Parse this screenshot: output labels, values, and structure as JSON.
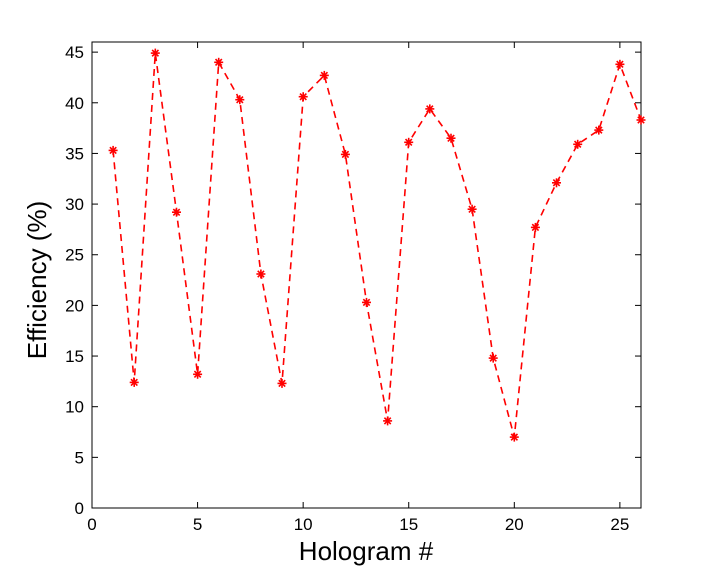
{
  "chart_data": {
    "type": "line",
    "title": "",
    "xlabel": "Hologram #",
    "ylabel": "Efficiency (%)",
    "xlim": [
      0,
      26
    ],
    "ylim": [
      0,
      46
    ],
    "xticks": [
      0,
      5,
      10,
      15,
      20,
      25
    ],
    "yticks": [
      0,
      5,
      10,
      15,
      20,
      25,
      30,
      35,
      40,
      45
    ],
    "grid": false,
    "legend": "none",
    "series": [
      {
        "line_style": "dashed",
        "marker": "asterisk",
        "color": "#ff0000",
        "x": [
          1,
          2,
          3,
          4,
          5,
          6,
          7,
          8,
          9,
          10,
          11,
          12,
          13,
          14,
          15,
          16,
          17,
          18,
          19,
          20,
          21,
          22,
          23,
          24,
          25,
          26
        ],
        "y": [
          35.3,
          12.4,
          44.9,
          29.2,
          13.2,
          44.0,
          40.3,
          23.1,
          12.3,
          40.6,
          42.7,
          34.9,
          20.3,
          8.6,
          36.1,
          39.4,
          36.5,
          29.5,
          14.8,
          7.0,
          27.7,
          32.1,
          35.9,
          37.3,
          43.8,
          38.3
        ]
      }
    ]
  }
}
